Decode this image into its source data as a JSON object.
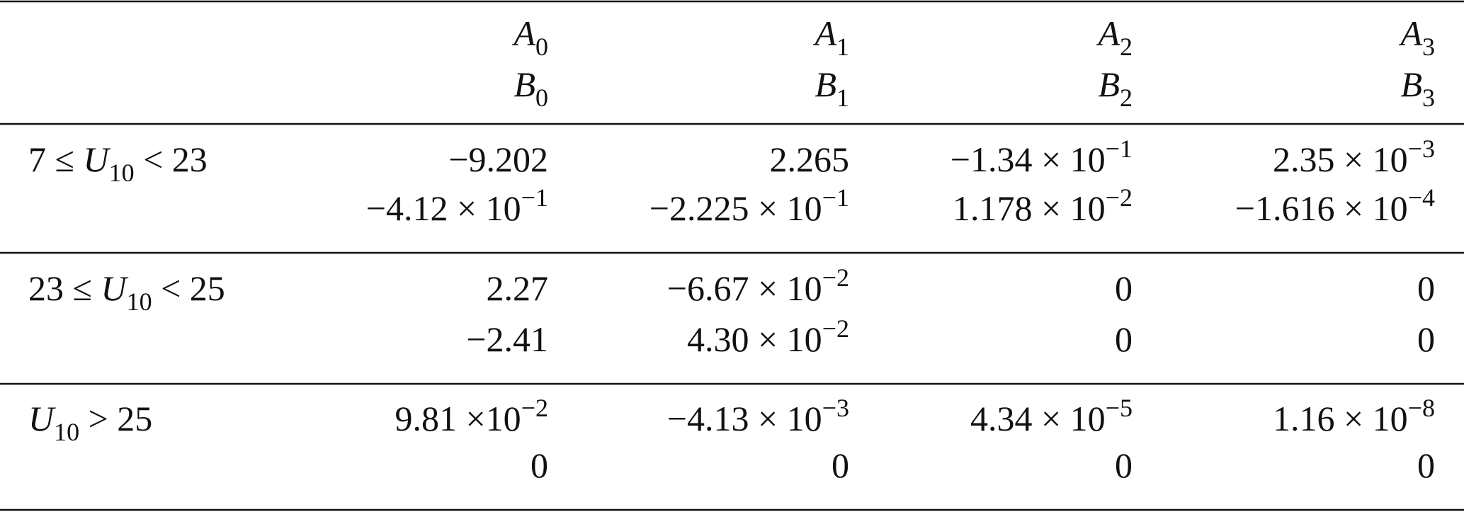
{
  "table": {
    "header": [
      [
        [
          {
            "italic": "A"
          },
          {
            "sub": "0"
          }
        ],
        [
          {
            "italic": "B"
          },
          {
            "sub": "0"
          }
        ]
      ],
      [
        [
          {
            "italic": "A"
          },
          {
            "sub": "1"
          }
        ],
        [
          {
            "italic": "B"
          },
          {
            "sub": "1"
          }
        ]
      ],
      [
        [
          {
            "italic": "A"
          },
          {
            "sub": "2"
          }
        ],
        [
          {
            "italic": "B"
          },
          {
            "sub": "2"
          }
        ]
      ],
      [
        [
          {
            "italic": "A"
          },
          {
            "sub": "3"
          }
        ],
        [
          {
            "italic": "B"
          },
          {
            "sub": "3"
          }
        ]
      ]
    ],
    "rows": [
      {
        "label": [
          {
            "text": "7 ≤ "
          },
          {
            "italic": "U"
          },
          {
            "sub": "10"
          },
          {
            "text": " < 23"
          }
        ],
        "cells": [
          [
            [
              {
                "text": "−9.202"
              }
            ],
            [
              {
                "text": "−4.12 × 10"
              },
              {
                "sup": "−1"
              }
            ]
          ],
          [
            [
              {
                "text": "2.265"
              }
            ],
            [
              {
                "text": "−2.225 × 10"
              },
              {
                "sup": "−1"
              }
            ]
          ],
          [
            [
              {
                "text": "−1.34 × 10"
              },
              {
                "sup": "−1"
              }
            ],
            [
              {
                "text": "1.178 × 10"
              },
              {
                "sup": "−2"
              }
            ]
          ],
          [
            [
              {
                "text": "2.35 × 10"
              },
              {
                "sup": "−3"
              }
            ],
            [
              {
                "text": "−1.616 × 10"
              },
              {
                "sup": "−4"
              }
            ]
          ]
        ]
      },
      {
        "label": [
          {
            "text": "23 ≤ "
          },
          {
            "italic": "U"
          },
          {
            "sub": "10"
          },
          {
            "text": " < 25"
          }
        ],
        "cells": [
          [
            [
              {
                "text": "2.27"
              }
            ],
            [
              {
                "text": "−2.41"
              }
            ]
          ],
          [
            [
              {
                "text": "−6.67 × 10"
              },
              {
                "sup": "−2"
              }
            ],
            [
              {
                "text": "4.30 × 10"
              },
              {
                "sup": "−2"
              }
            ]
          ],
          [
            [
              {
                "text": "0"
              }
            ],
            [
              {
                "text": "0"
              }
            ]
          ],
          [
            [
              {
                "text": "0"
              }
            ],
            [
              {
                "text": "0"
              }
            ]
          ]
        ]
      },
      {
        "label": [
          {
            "italic": "U"
          },
          {
            "sub": "10"
          },
          {
            "text": " > 25"
          }
        ],
        "cells": [
          [
            [
              {
                "text": "9.81 ×10"
              },
              {
                "sup": "−2"
              }
            ],
            [
              {
                "text": "0"
              }
            ]
          ],
          [
            [
              {
                "text": "−4.13 × 10"
              },
              {
                "sup": "−3"
              }
            ],
            [
              {
                "text": "0"
              }
            ]
          ],
          [
            [
              {
                "text": "4.34 × 10"
              },
              {
                "sup": "−5"
              }
            ],
            [
              {
                "text": "0"
              }
            ]
          ],
          [
            [
              {
                "text": "1.16 × 10"
              },
              {
                "sup": "−8"
              }
            ],
            [
              {
                "text": "0"
              }
            ]
          ]
        ]
      }
    ]
  }
}
